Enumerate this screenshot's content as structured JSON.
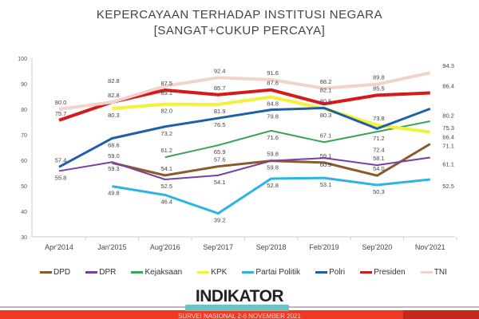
{
  "title": "KEPERCAYAAN TERHADAP INSTITUSI NEGARA",
  "subtitle": "[SANGAT+CUKUP PERCAYA]",
  "logo": "INDIKATOR",
  "footer": "SURVEI NASIONAL 2-6 NOVEMBER 2021",
  "chart_data": {
    "type": "line",
    "title": "KEPERCAYAAN TERHADAP INSTITUSI NEGARA",
    "subtitle": "[SANGAT+CUKUP PERCAYA]",
    "xlabel": "",
    "ylabel": "",
    "ylim": [
      30,
      100
    ],
    "yticks": [
      30,
      40,
      50,
      60,
      70,
      80,
      90,
      100
    ],
    "legend": "bottom",
    "categories": [
      "Apr'2014",
      "Jan'2015",
      "Aug'2016",
      "Sep'2017",
      "Sep'2018",
      "Feb'2019",
      "Sep'2020",
      "Nov'2021"
    ],
    "series": [
      {
        "name": "DPD",
        "color": "#8b5a2b",
        "width": 3,
        "label": "above",
        "values": [
          null,
          59.0,
          54.1,
          57.6,
          59.8,
          59.1,
          54.0,
          66.4
        ]
      },
      {
        "name": "DPR",
        "color": "#7b3fa0",
        "width": 2,
        "label": "below",
        "values": [
          55.8,
          59.3,
          52.5,
          54.1,
          59.8,
          60.9,
          58.1,
          61.1
        ]
      },
      {
        "name": "Kejaksaan",
        "color": "#3aa55a",
        "width": 2,
        "label": "below",
        "values": [
          null,
          null,
          61.2,
          65.9,
          71.6,
          67.1,
          71.2,
          75.3
        ]
      },
      {
        "name": "KPK",
        "color": "#f2f23a",
        "width": 4,
        "label": "below",
        "values": [
          null,
          80.3,
          82.0,
          81.9,
          84.8,
          80.3,
          73.8,
          71.1
        ]
      },
      {
        "name": "Partai Politik",
        "color": "#2db5e0",
        "width": 3,
        "label": "below",
        "values": [
          null,
          49.8,
          46.4,
          39.2,
          52.8,
          53.1,
          50.3,
          52.5
        ]
      },
      {
        "name": "Polri",
        "color": "#1f5fa8",
        "width": 3,
        "label": "below",
        "values": [
          57.4,
          68.6,
          73.2,
          76.5,
          79.8,
          80.5,
          72.4,
          80.2
        ]
      },
      {
        "name": "Presiden",
        "color": "#d7191c",
        "width": 4,
        "label": "above",
        "values": [
          75.7,
          82.8,
          87.5,
          85.7,
          87.6,
          82.1,
          85.5,
          86.4
        ]
      },
      {
        "name": "TNI",
        "color": "#f2d3cc",
        "width": 4,
        "label": "above",
        "values": [
          80.0,
          82.8,
          89.1,
          92.4,
          91.6,
          88.2,
          89.8,
          94.3
        ]
      }
    ]
  }
}
